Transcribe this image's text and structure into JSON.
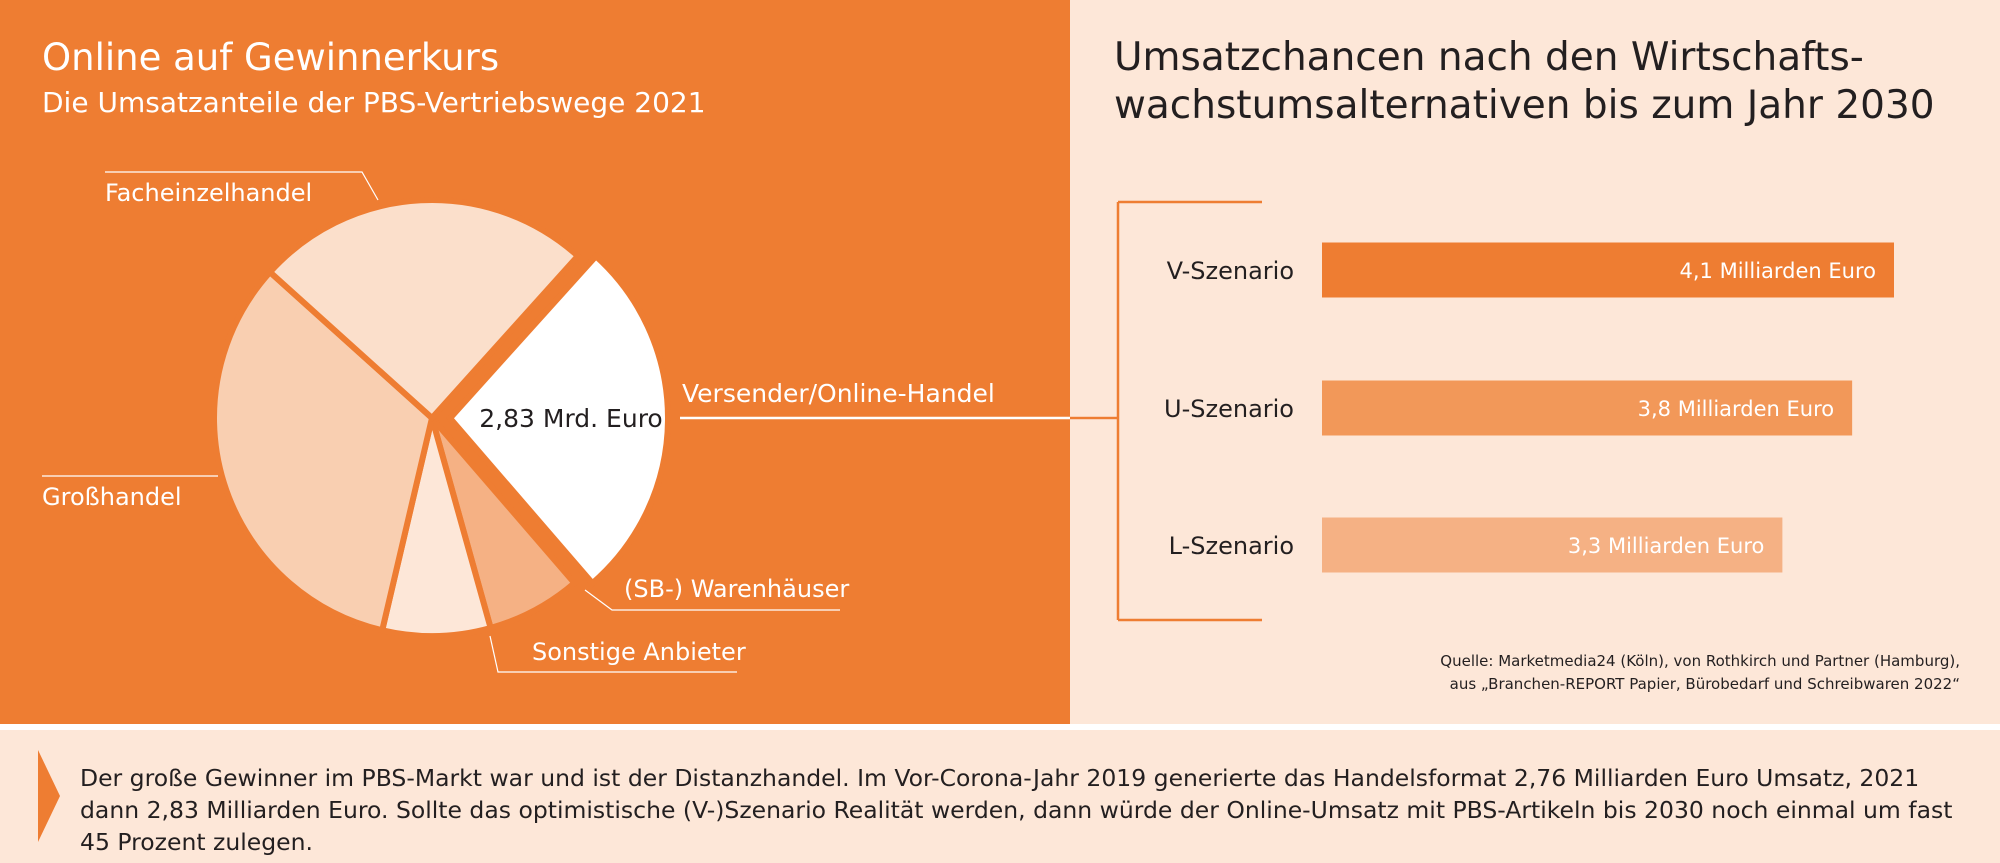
{
  "left": {
    "title": "Online auf Gewinnerkurs",
    "subtitle": "Die Umsatzanteile der PBS-Vertriebswege 2021"
  },
  "right": {
    "title_line1": "Umsatzchancen nach den Wirtschafts-",
    "title_line2": "wachstumsalternativen bis zum Jahr 2030"
  },
  "source": {
    "line1": "Quelle: Marketmedia24 (Köln), von Rothkirch und Partner (Hamburg),",
    "line2": "aus „Branchen-REPORT Papier, Bürobedarf und Schreibwaren 2022“"
  },
  "summary": "Der große Gewinner im PBS-Markt war und ist der Distanzhandel. Im Vor-Corona-Jahr 2019 generierte das Handelsformat 2,76 Milliarden Euro Umsatz, 2021 dann 2,83 Milliarden Euro. Sollte das optimistische (V-)Szenario Realität werden, dann würde der Online-Umsatz mit PBS-Artikeln bis 2030 noch einmal um fast 45 Prozent zulegen.",
  "colors": {
    "orange": "#ee7d32",
    "background_light": "#fde7d8",
    "bar_v": "#ee7d32",
    "bar_u": "#f29859",
    "bar_l": "#f5b184"
  },
  "chart_data": [
    {
      "type": "pie",
      "title": "Online auf Gewinnerkurs",
      "subtitle": "Die Umsatzanteile der PBS-Vertriebswege 2021",
      "slices": [
        {
          "label": "Versender/Online-Handel",
          "value": 27,
          "value_label": "2,83 Mrd. Euro",
          "color": "#ffffff",
          "exploded": true
        },
        {
          "label": "(SB-) Warenhäuser",
          "value": 7,
          "value_label": "",
          "color": "#f5b184",
          "exploded": false
        },
        {
          "label": "Sonstige Anbieter",
          "value": 8,
          "value_label": "",
          "color": "#fde7d8",
          "exploded": false
        },
        {
          "label": "Großhandel",
          "value": 33,
          "value_label": "",
          "color": "#f9cfb1",
          "exploded": false
        },
        {
          "label": "Facheinzelhandel",
          "value": 25,
          "value_label": "",
          "color": "#fbdfcb",
          "exploded": false
        }
      ]
    },
    {
      "type": "bar",
      "orientation": "horizontal",
      "title": "Umsatzchancen nach den Wirtschafts-wachstumsalternativen bis zum Jahr 2030",
      "categories": [
        "V-Szenario",
        "U-Szenario",
        "L-Szenario"
      ],
      "values": [
        4.1,
        3.8,
        3.3
      ],
      "value_labels": [
        "4,1 Milliarden Euro",
        "3,8 Milliarden Euro",
        "3,3 Milliarden Euro"
      ],
      "colors": [
        "#ee7d32",
        "#f29859",
        "#f5b184"
      ],
      "xlim": [
        0,
        4.3
      ]
    }
  ]
}
